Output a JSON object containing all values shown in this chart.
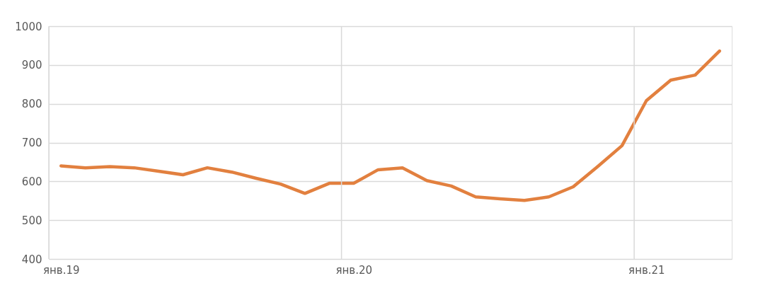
{
  "chart_data": {
    "type": "line",
    "categories": [
      "янв.19",
      null,
      null,
      null,
      null,
      null,
      null,
      null,
      null,
      null,
      null,
      null,
      "янв.20",
      null,
      null,
      null,
      null,
      null,
      null,
      null,
      null,
      null,
      null,
      null,
      "янв.21",
      null,
      null,
      null
    ],
    "series": [
      {
        "color": "#e2803f",
        "values": [
          640,
          635,
          638,
          635,
          626,
          617,
          635,
          624,
          608,
          593,
          569,
          595,
          595,
          630,
          635,
          602,
          588,
          560,
          555,
          551,
          560,
          586,
          638,
          692,
          808,
          861,
          874,
          936
        ]
      }
    ],
    "ylim": [
      400,
      1000
    ],
    "yticks": [
      400,
      500,
      600,
      700,
      800,
      900,
      1000
    ],
    "grid": true,
    "legend": false,
    "marker": "none",
    "line_style": "solid"
  }
}
